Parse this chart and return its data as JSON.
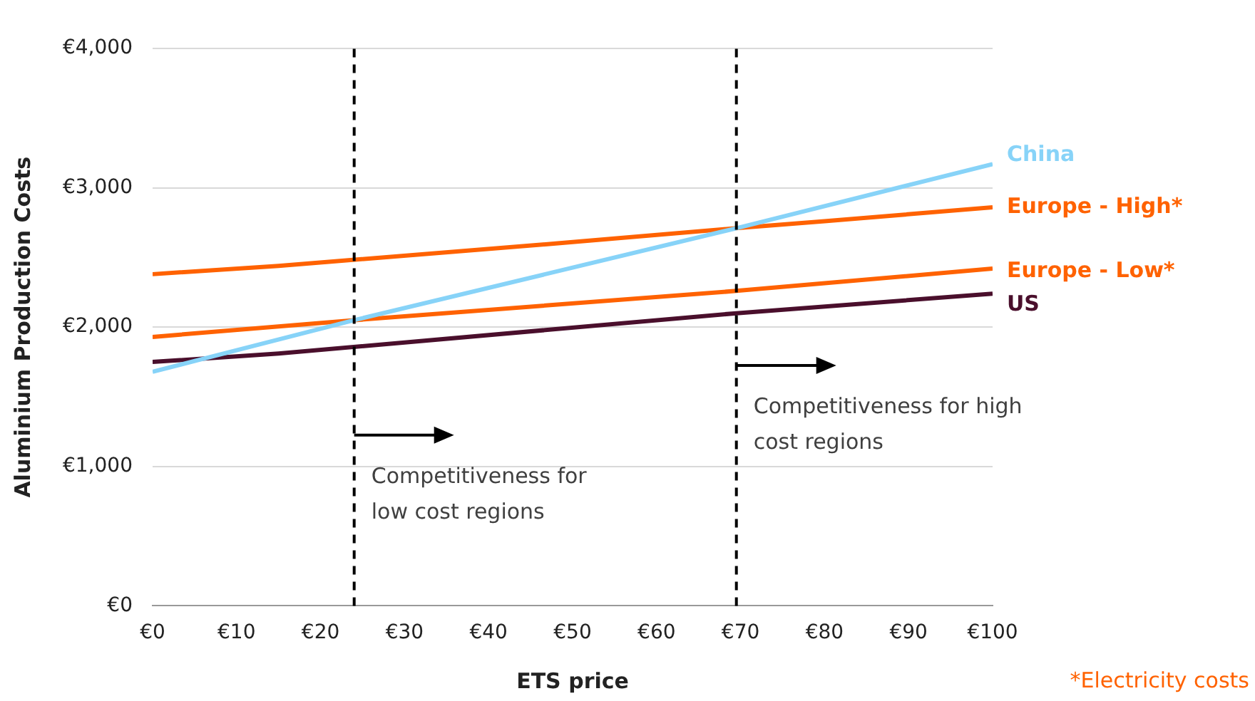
{
  "chart_data": {
    "type": "line",
    "xlabel": "ETS price",
    "ylabel": "Aluminium Production Costs",
    "xlim": [
      0,
      100
    ],
    "xticks": [
      {
        "value": 0,
        "label": "€0"
      },
      {
        "value": 10,
        "label": "€10"
      },
      {
        "value": 20,
        "label": "€20"
      },
      {
        "value": 30,
        "label": "€30"
      },
      {
        "value": 40,
        "label": "€40"
      },
      {
        "value": 50,
        "label": "€50"
      },
      {
        "value": 60,
        "label": "€60"
      },
      {
        "value": 70,
        "label": "€70"
      },
      {
        "value": 80,
        "label": "€80"
      },
      {
        "value": 90,
        "label": "€90"
      },
      {
        "value": 100,
        "label": "€100"
      }
    ],
    "ylim": [
      0,
      4000
    ],
    "yticks": [
      {
        "value": 0,
        "label": "€0"
      },
      {
        "value": 1000,
        "label": "€1,000"
      },
      {
        "value": 2000,
        "label": "€2,000"
      },
      {
        "value": 3000,
        "label": "€3,000"
      },
      {
        "value": 4000,
        "label": "€4,000"
      }
    ],
    "grid": "y",
    "legend": false,
    "marker": "none",
    "line_style": "solid",
    "series": [
      {
        "name": "China",
        "color": "#87d3f8",
        "x": [
          0,
          24,
          69.5,
          100
        ],
        "values": [
          1680,
          2050,
          2710,
          3170
        ]
      },
      {
        "name": "Europe - High*",
        "color": "#ff6200",
        "x": [
          0,
          15,
          48,
          69.5,
          80,
          100
        ],
        "values": [
          2380,
          2440,
          2600,
          2710,
          2760,
          2860
        ]
      },
      {
        "name": "Europe - Low*",
        "color": "#ff6200",
        "x": [
          0,
          24,
          69.5,
          100
        ],
        "values": [
          1930,
          2050,
          2260,
          2420
        ]
      },
      {
        "name": "US",
        "color": "#4a0f2c",
        "x": [
          0,
          15,
          69.5,
          100
        ],
        "values": [
          1750,
          1810,
          2100,
          2240
        ]
      }
    ],
    "ref_lines": [
      {
        "axis": "x",
        "value": 24,
        "line_style": "dashed",
        "color": "#000000"
      },
      {
        "axis": "x",
        "value": 69.5,
        "line_style": "dashed",
        "color": "#000000"
      }
    ],
    "annotations": [
      {
        "text": "Competitiveness for low cost regions",
        "x": 24,
        "y": 1000
      },
      {
        "text": "Competitiveness for high cost regions",
        "x": 69.5,
        "y": 1500
      },
      "*Electricity costs"
    ]
  }
}
